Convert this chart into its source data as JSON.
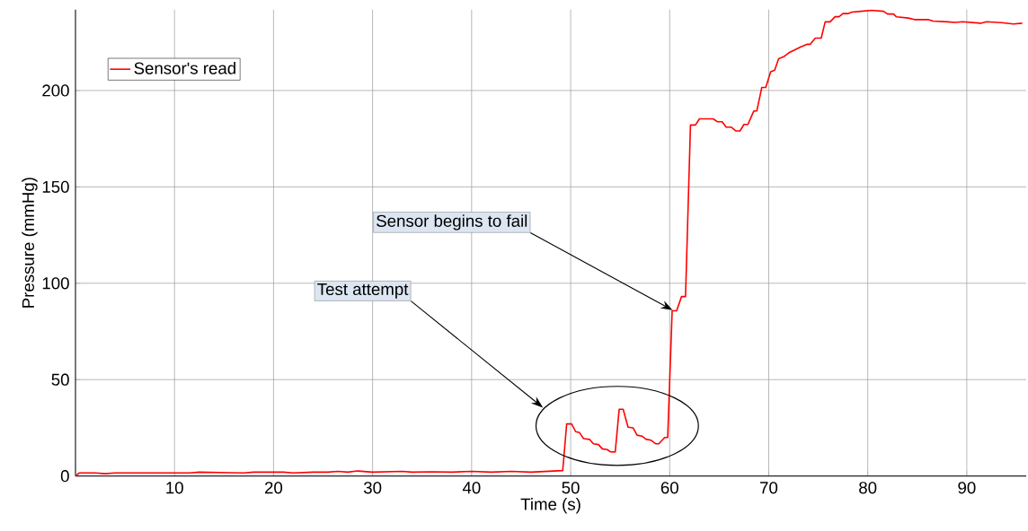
{
  "chart_data": {
    "type": "line",
    "xlabel": "Time (s)",
    "ylabel": "Pressure (mmHg)",
    "xlim": [
      0,
      96
    ],
    "ylim": [
      0,
      242
    ],
    "xticks": [
      10,
      20,
      30,
      40,
      50,
      60,
      70,
      80,
      90
    ],
    "yticks": [
      0,
      50,
      100,
      150,
      200
    ],
    "grid": true,
    "legend": "top left",
    "series": [
      {
        "name": "Sensor's read",
        "color": "#ff0000",
        "x": [
          0,
          0.4,
          2,
          3,
          4,
          10,
          11.5,
          12.5,
          17,
          18,
          21,
          22,
          24,
          25.5,
          26.5,
          27.5,
          28.5,
          30,
          33,
          34,
          36,
          38,
          40,
          42,
          44,
          46,
          49.2,
          49.6,
          50.1,
          50.5,
          50.9,
          51.3,
          51.9,
          52.3,
          52.8,
          53.2,
          53.7,
          54.0,
          54.5,
          54.9,
          55.3,
          55.8,
          56.3,
          56.7,
          57.2,
          57.6,
          58.1,
          58.6,
          58.9,
          59.5,
          59.8,
          60.25,
          60.7,
          61.2,
          61.6,
          62.1,
          62.6,
          63.0,
          64.4,
          64.8,
          65.3,
          65.7,
          66.2,
          66.7,
          67.1,
          67.5,
          67.9,
          68.5,
          68.8,
          69.3,
          69.7,
          70.2,
          70.6,
          71.0,
          71.5,
          72.0,
          72.6,
          73.2,
          73.9,
          74.2,
          74.7,
          75.3,
          75.7,
          76.2,
          76.7,
          77.1,
          77.5,
          78.0,
          78.4,
          79.3,
          80.4,
          81.6,
          82.0,
          82.6,
          82.9,
          84.1,
          84.7,
          86.1,
          86.6,
          88.1,
          88.8,
          89.6,
          91.4,
          92.0,
          93.5,
          94.7,
          95.6
        ],
        "values": [
          0,
          1.6,
          1.6,
          1.2,
          1.6,
          1.6,
          1.6,
          2.0,
          1.6,
          2.0,
          2.0,
          1.6,
          2.0,
          2.0,
          2.4,
          2.0,
          2.6,
          2.0,
          2.4,
          2.0,
          2.2,
          2.0,
          2.4,
          2.0,
          2.4,
          2.0,
          2.8,
          27.1,
          27.0,
          23.0,
          22.5,
          19.4,
          19.0,
          16.7,
          16.3,
          14.1,
          13.7,
          12.6,
          12.4,
          34.6,
          34.6,
          25.3,
          25.0,
          21.2,
          20.7,
          19.1,
          18.6,
          16.7,
          16.7,
          20.0,
          20.0,
          85.7,
          85.7,
          93.1,
          93.1,
          182.1,
          182.1,
          185.3,
          185.3,
          183.8,
          183.8,
          181.0,
          181.0,
          179.0,
          179.0,
          182.4,
          182.4,
          189.4,
          189.4,
          201.6,
          201.6,
          209.7,
          210.5,
          216.5,
          217.5,
          219.5,
          221.0,
          222.5,
          224.0,
          224.0,
          227.2,
          227.2,
          235.6,
          235.6,
          238.3,
          238.3,
          239.9,
          239.9,
          240.7,
          241.1,
          241.6,
          241.1,
          239.7,
          239.7,
          238.2,
          237.6,
          236.8,
          236.8,
          236.0,
          235.6,
          235.3,
          235.7,
          234.9,
          235.7,
          235.2,
          234.5,
          234.9
        ]
      }
    ],
    "annotations": [
      "Test attempt",
      {
        "text": "Sensor begins to fail",
        "x": 60.3,
        "y": 86
      }
    ]
  }
}
